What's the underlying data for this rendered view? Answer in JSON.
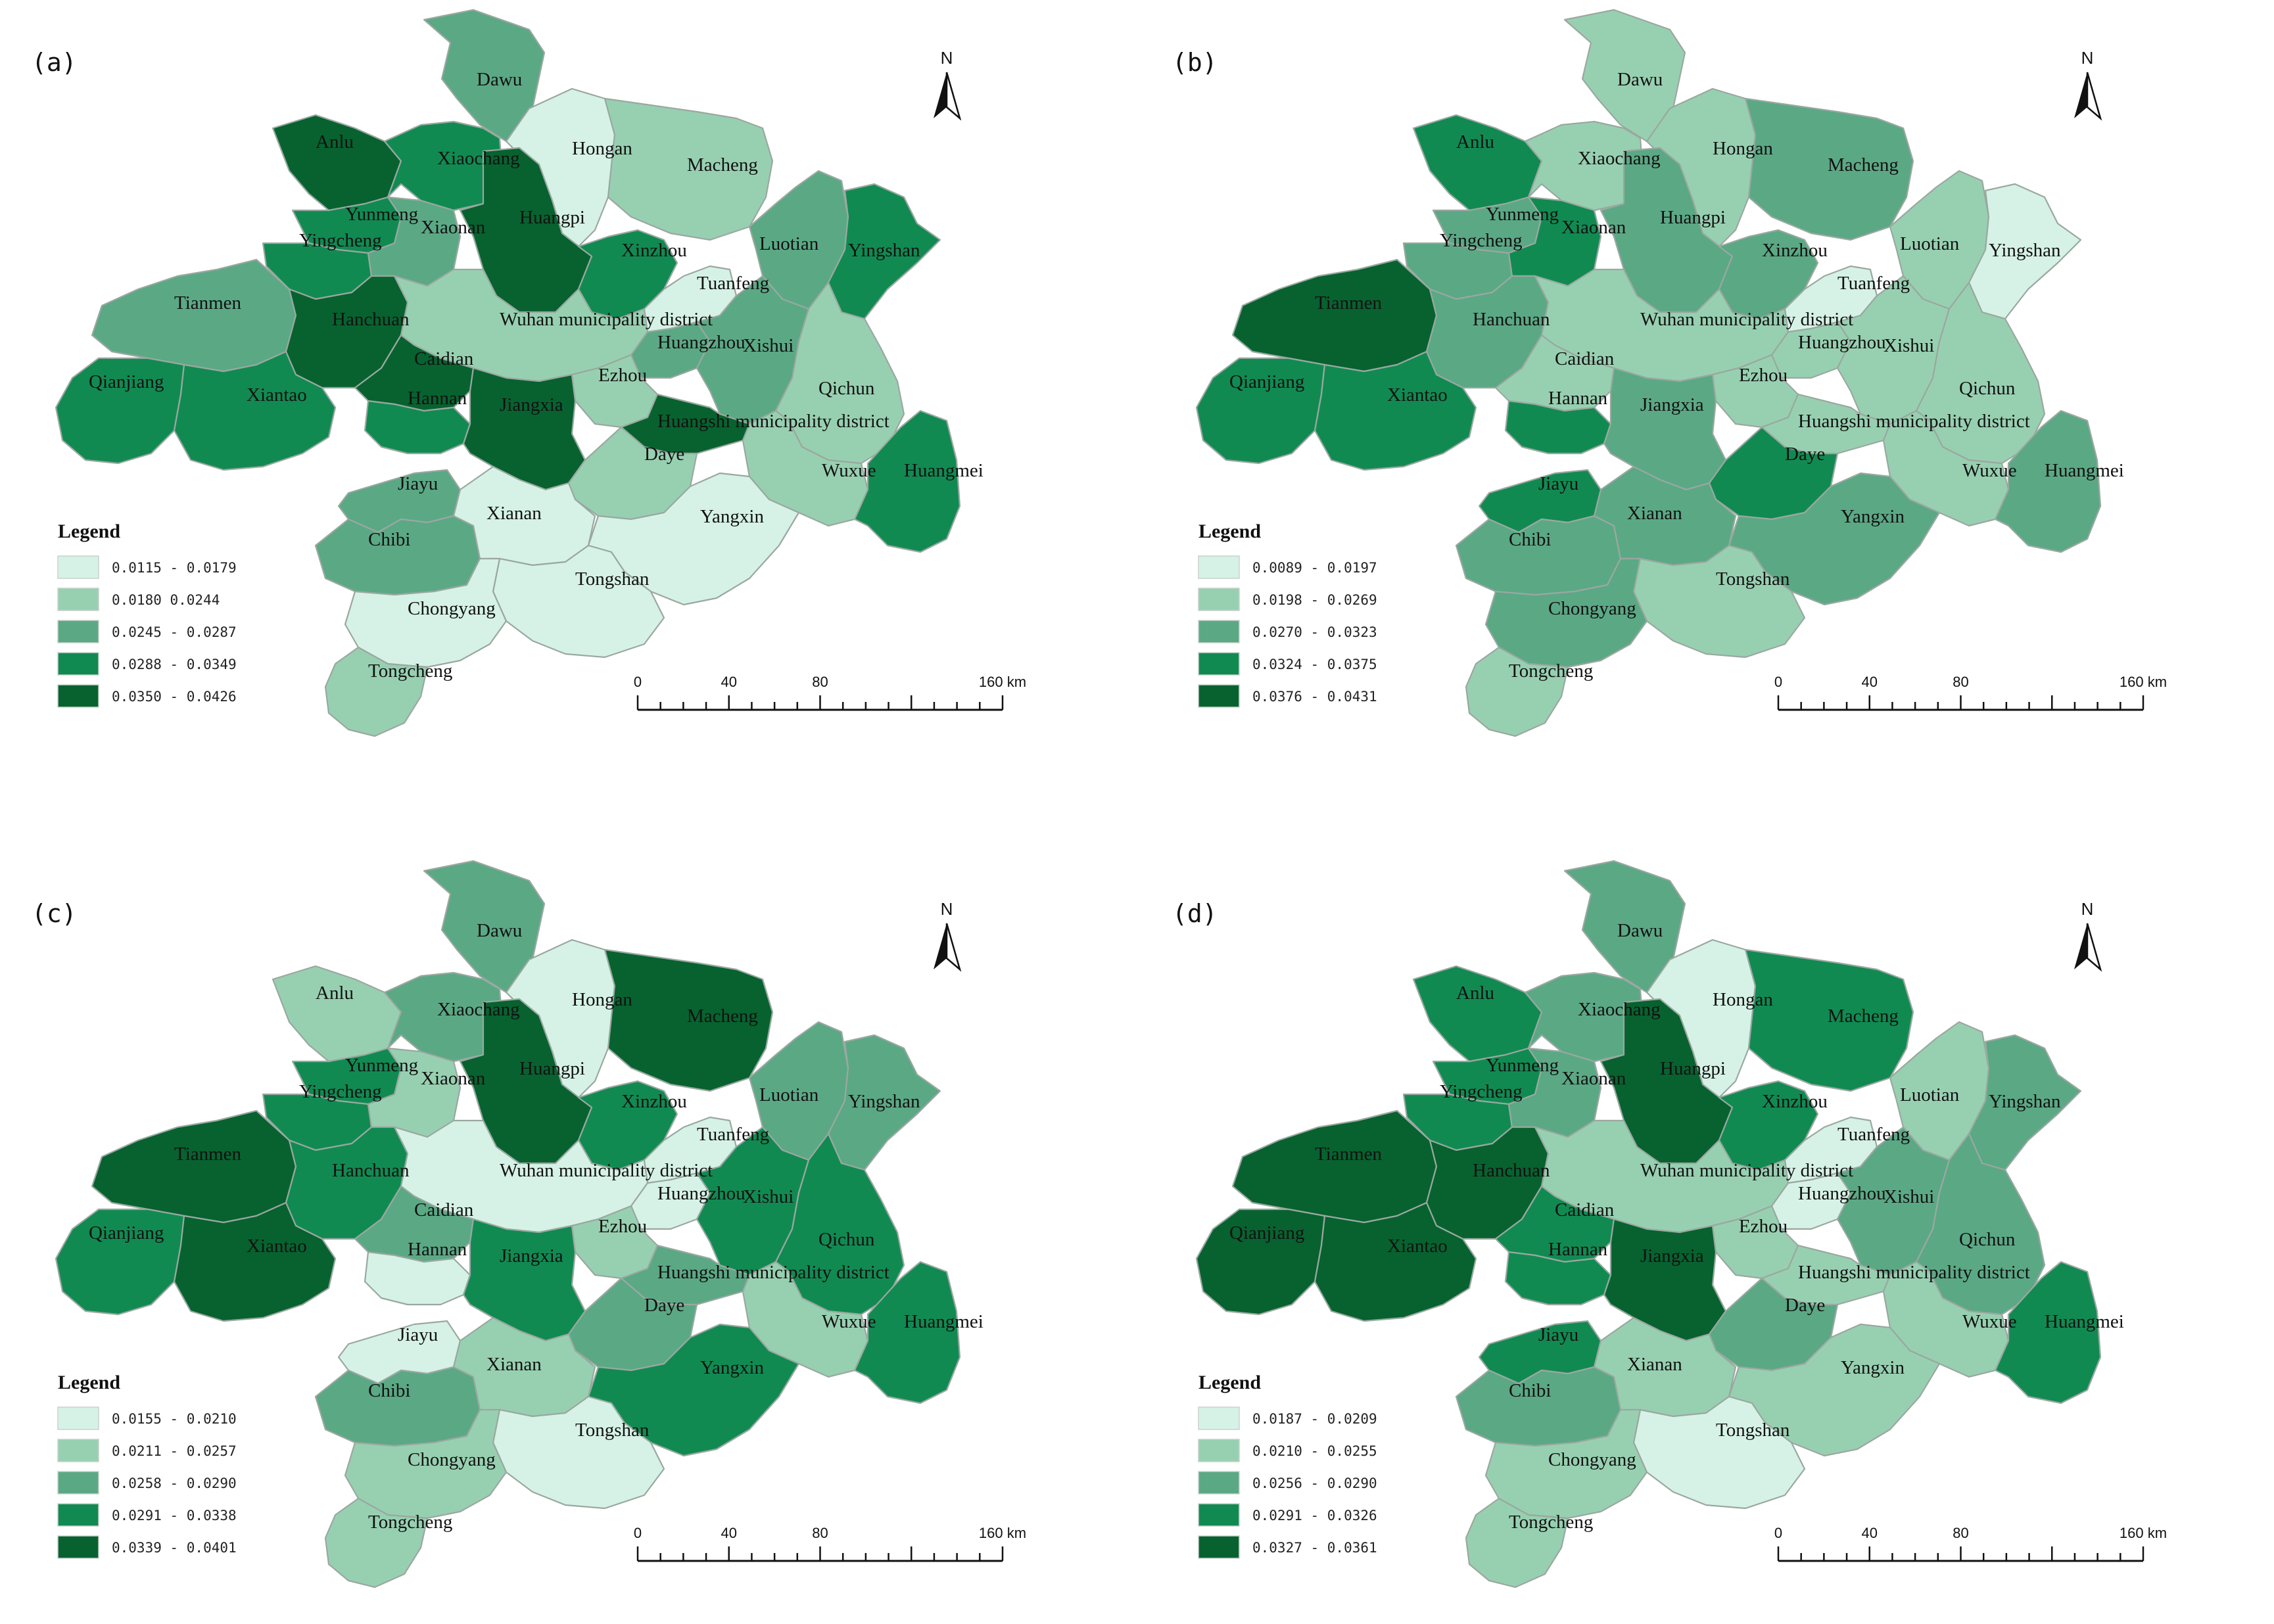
{
  "panels": [
    {
      "label": "(a)",
      "legend": {
        "title": "Legend",
        "classes": [
          {
            "range": "0.0115 - 0.0179",
            "color": "#d6f2e6"
          },
          {
            "range": "0.0180   0.0244",
            "color": "#97d0b1"
          },
          {
            "range": "0.0245 - 0.0287",
            "color": "#5ba885"
          },
          {
            "range": "0.0288 - 0.0349",
            "color": "#118a52"
          },
          {
            "range": "0.0350 - 0.0426",
            "color": "#07622f"
          }
        ]
      },
      "classes_by_region": {
        "dawu": 2,
        "anlu": 4,
        "xiaochang": 3,
        "hongan": 0,
        "macheng": 1,
        "yunmeng": 3,
        "yingcheng": 3,
        "xiaonan": 2,
        "huangpi": 4,
        "xinzhou": 3,
        "luotian": 2,
        "yingshan": 3,
        "tianmen": 2,
        "hanchuan": 4,
        "wuhan": 1,
        "tuanfeng": 0,
        "huangzhou": 2,
        "xishui": 2,
        "qianjiang": 3,
        "xiantao": 3,
        "caidian": 4,
        "hannan": 3,
        "jiangxia": 4,
        "ezhou": 1,
        "qichun": 1,
        "huangshi": 4,
        "daye": 1,
        "wuxue": 1,
        "huangmei": 3,
        "jiayu": 2,
        "chibi": 2,
        "xianan": 0,
        "yangxin": 0,
        "tongshan": 0,
        "chongyang": 0,
        "tongcheng": 1
      }
    },
    {
      "label": "(b)",
      "legend": {
        "title": "Legend",
        "classes": [
          {
            "range": "0.0089 - 0.0197",
            "color": "#d6f2e6"
          },
          {
            "range": "0.0198 - 0.0269",
            "color": "#97d0b1"
          },
          {
            "range": "0.0270 - 0.0323",
            "color": "#5ba885"
          },
          {
            "range": "0.0324 - 0.0375",
            "color": "#118a52"
          },
          {
            "range": "0.0376 - 0.0431",
            "color": "#07622f"
          }
        ]
      },
      "classes_by_region": {
        "dawu": 1,
        "anlu": 3,
        "xiaochang": 1,
        "hongan": 1,
        "macheng": 2,
        "yunmeng": 2,
        "yingcheng": 2,
        "xiaonan": 3,
        "huangpi": 2,
        "xinzhou": 2,
        "luotian": 1,
        "yingshan": 0,
        "tianmen": 4,
        "hanchuan": 2,
        "wuhan": 1,
        "tuanfeng": 0,
        "huangzhou": 1,
        "xishui": 1,
        "qianjiang": 3,
        "xiantao": 3,
        "caidian": 1,
        "hannan": 3,
        "jiangxia": 2,
        "ezhou": 1,
        "qichun": 1,
        "huangshi": 1,
        "daye": 3,
        "wuxue": 1,
        "huangmei": 2,
        "jiayu": 3,
        "chibi": 2,
        "xianan": 2,
        "yangxin": 2,
        "tongshan": 1,
        "chongyang": 2,
        "tongcheng": 1
      }
    },
    {
      "label": "(c)",
      "legend": {
        "title": "Legend",
        "classes": [
          {
            "range": "0.0155 - 0.0210",
            "color": "#d6f2e6"
          },
          {
            "range": "0.0211 - 0.0257",
            "color": "#97d0b1"
          },
          {
            "range": "0.0258 - 0.0290",
            "color": "#5ba885"
          },
          {
            "range": "0.0291 - 0.0338",
            "color": "#118a52"
          },
          {
            "range": "0.0339 - 0.0401",
            "color": "#07622f"
          }
        ]
      },
      "classes_by_region": {
        "dawu": 2,
        "anlu": 1,
        "xiaochang": 2,
        "hongan": 0,
        "macheng": 4,
        "yunmeng": 3,
        "yingcheng": 3,
        "xiaonan": 1,
        "huangpi": 4,
        "xinzhou": 3,
        "luotian": 2,
        "yingshan": 2,
        "tianmen": 4,
        "hanchuan": 3,
        "wuhan": 0,
        "tuanfeng": 0,
        "huangzhou": 0,
        "xishui": 3,
        "qianjiang": 3,
        "xiantao": 4,
        "caidian": 2,
        "hannan": 0,
        "jiangxia": 3,
        "ezhou": 1,
        "qichun": 3,
        "huangshi": 2,
        "daye": 2,
        "wuxue": 1,
        "huangmei": 3,
        "jiayu": 0,
        "chibi": 2,
        "xianan": 1,
        "yangxin": 3,
        "tongshan": 0,
        "chongyang": 1,
        "tongcheng": 1
      }
    },
    {
      "label": "(d)",
      "legend": {
        "title": "Legend",
        "classes": [
          {
            "range": "0.0187 - 0.0209",
            "color": "#d6f2e6"
          },
          {
            "range": "0.0210 - 0.0255",
            "color": "#97d0b1"
          },
          {
            "range": "0.0256 - 0.0290",
            "color": "#5ba885"
          },
          {
            "range": "0.0291 - 0.0326",
            "color": "#118a52"
          },
          {
            "range": "0.0327 - 0.0361",
            "color": "#07622f"
          }
        ]
      },
      "classes_by_region": {
        "dawu": 2,
        "anlu": 3,
        "xiaochang": 2,
        "hongan": 0,
        "macheng": 3,
        "yunmeng": 3,
        "yingcheng": 3,
        "xiaonan": 2,
        "huangpi": 4,
        "xinzhou": 3,
        "luotian": 1,
        "yingshan": 2,
        "tianmen": 4,
        "hanchuan": 4,
        "wuhan": 1,
        "tuanfeng": 0,
        "huangzhou": 0,
        "xishui": 2,
        "qianjiang": 4,
        "xiantao": 4,
        "caidian": 3,
        "hannan": 3,
        "jiangxia": 4,
        "ezhou": 1,
        "qichun": 2,
        "huangshi": 1,
        "daye": 2,
        "wuxue": 1,
        "huangmei": 3,
        "jiayu": 3,
        "chibi": 2,
        "xianan": 1,
        "yangxin": 1,
        "tongshan": 0,
        "chongyang": 1,
        "tongcheng": 1
      }
    }
  ],
  "region_names": {
    "dawu": "Dawu",
    "anlu": "Anlu",
    "xiaochang": "Xiaochang",
    "hongan": "Hongan",
    "macheng": "Macheng",
    "yunmeng": "Yunmeng",
    "yingcheng": "Yingcheng",
    "xiaonan": "Xiaonan",
    "huangpi": "Huangpi",
    "xinzhou": "Xinzhou",
    "luotian": "Luotian",
    "yingshan": "Yingshan",
    "tianmen": "Tianmen",
    "hanchuan": "Hanchuan",
    "wuhan": "Wuhan municipality district",
    "tuanfeng": "Tuanfeng",
    "huangzhou": "Huangzhou",
    "xishui": "Xishui",
    "qianjiang": "Qianjiang",
    "xiantao": "Xiantao",
    "caidian": "Caidian",
    "hannan": "Hannan",
    "jiangxia": "Jiangxia",
    "ezhou": "Ezhou",
    "qichun": "Qichun",
    "huangshi": "Huangshi municipality district",
    "daye": "Daye",
    "wuxue": "Wuxue",
    "huangmei": "Huangmei",
    "jiayu": "Jiayu",
    "chibi": "Chibi",
    "xianan": "Xianan",
    "yangxin": "Yangxin",
    "tongshan": "Tongshan",
    "chongyang": "Chongyang",
    "tongcheng": "Tongcheng"
  },
  "north_arrow": {
    "label": "N"
  },
  "scale_bar": {
    "ticks": [
      "0",
      "40",
      "80",
      "160 km"
    ]
  }
}
